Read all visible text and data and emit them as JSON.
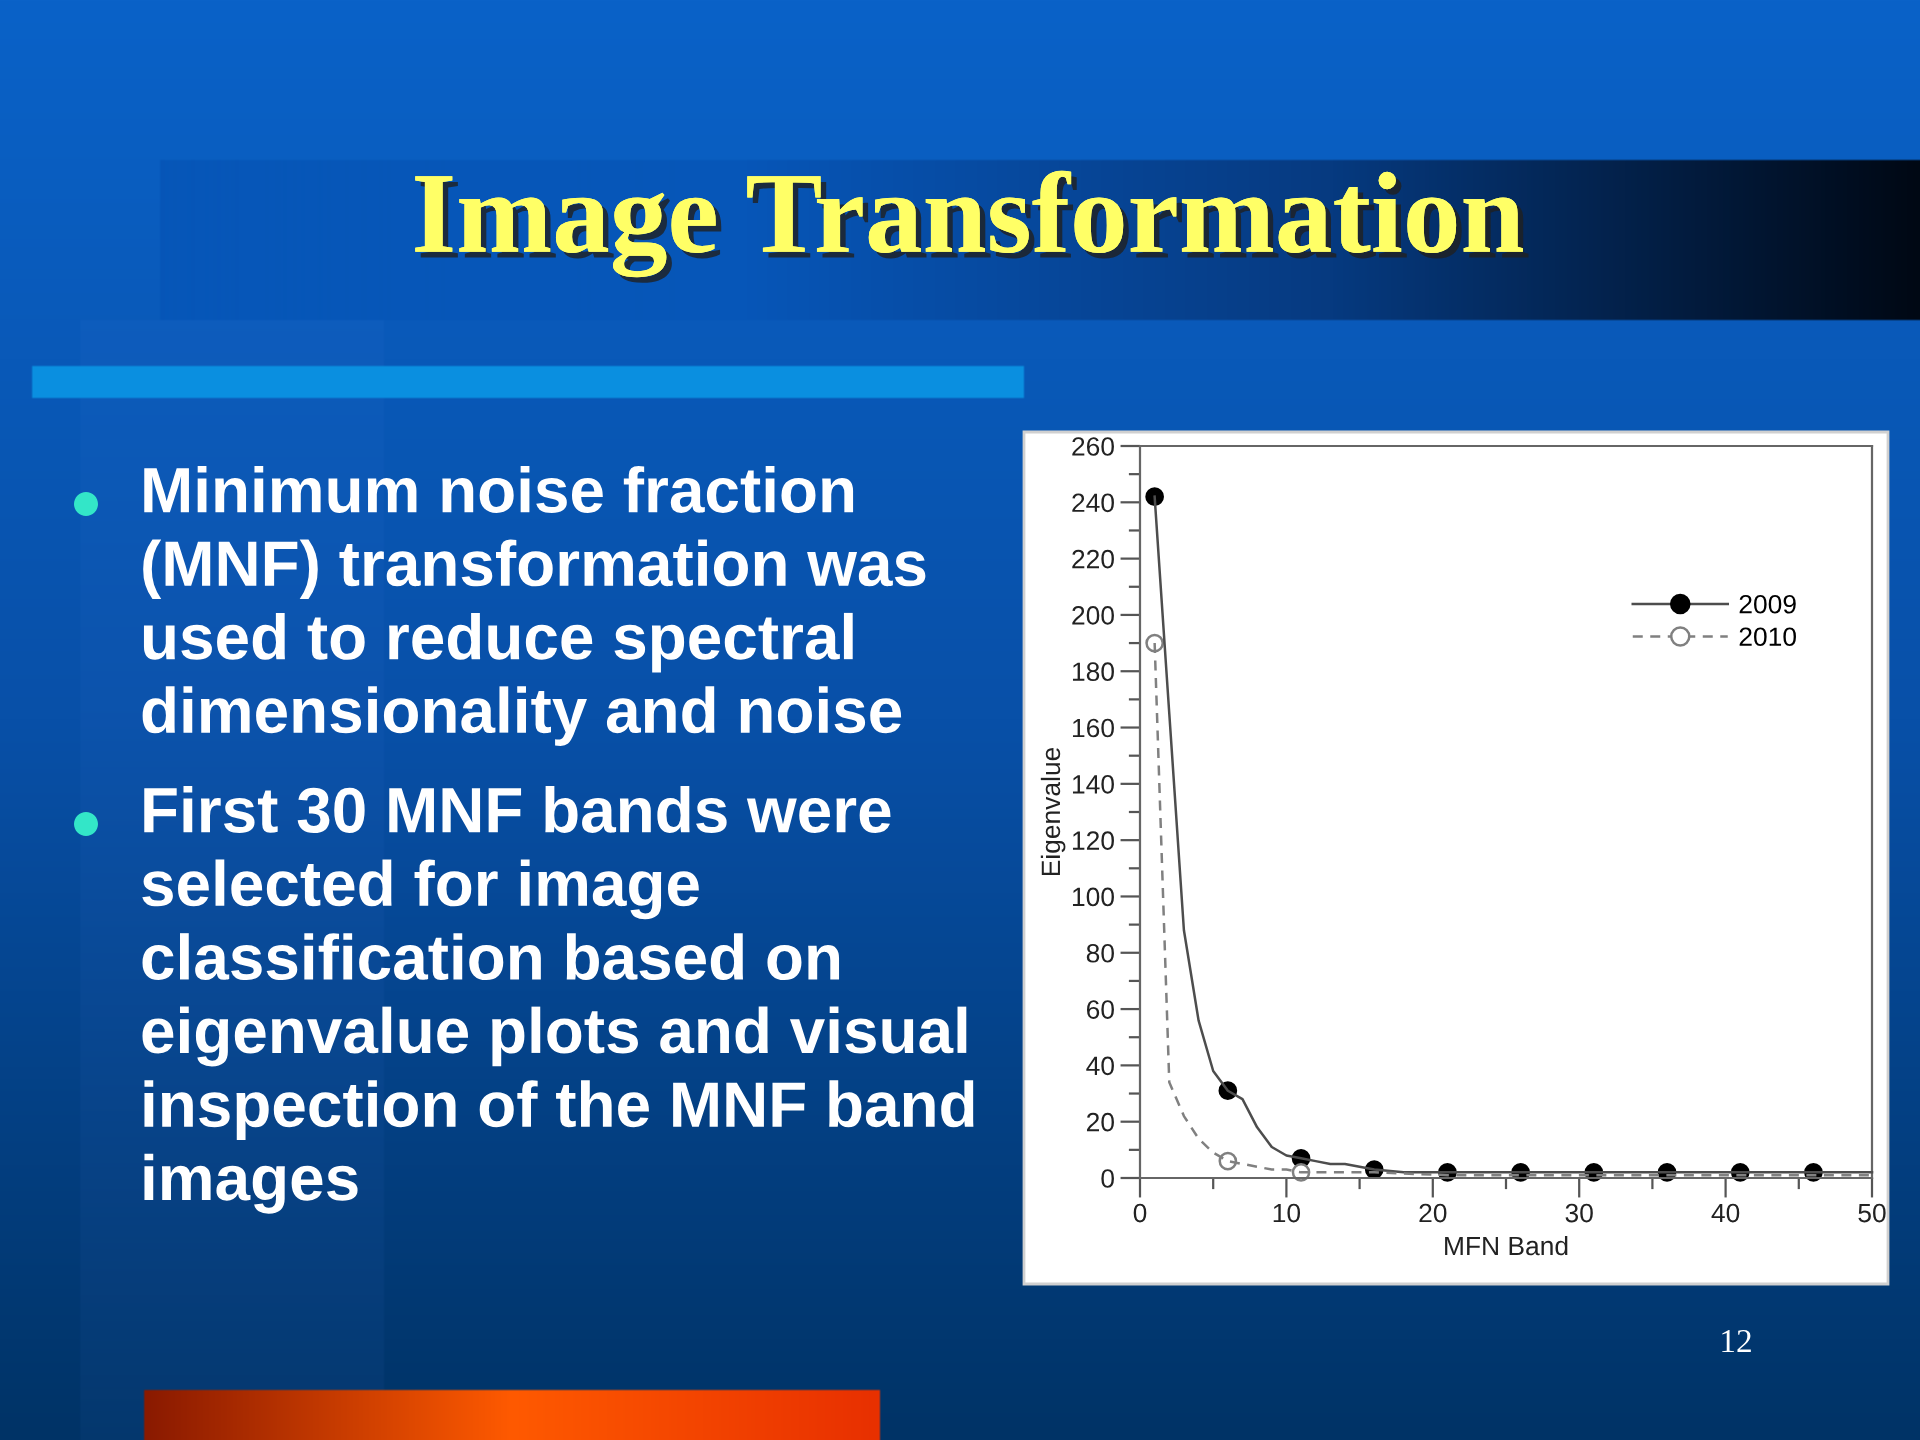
{
  "chart_data": {
    "type": "line",
    "title": "Image Transformation",
    "xlabel": "MFN Band",
    "ylabel": "Eigenvalue",
    "annotations": [
      "Minimum noise fraction\n(MNF) transformation was\nused to reduce spectral\ndimensionality and noise",
      "First 30 MNF bands were\nselected for image\nclassification based on\neigenvalue plots and visual\ninspection of the MNF band\nimages",
      "12"
    ],
    "xlim": [
      0,
      50
    ],
    "ylim": [
      0,
      260
    ],
    "xticks": [
      0,
      {
        "value": 5,
        "label": null
      },
      10,
      {
        "value": 15,
        "label": null
      },
      20,
      {
        "value": 25,
        "label": null
      },
      30,
      {
        "value": 35,
        "label": null
      },
      40,
      {
        "value": 45,
        "label": null
      },
      50
    ],
    "yticks": [
      0,
      {
        "value": 10,
        "label": null
      },
      20,
      {
        "value": 30,
        "label": null
      },
      40,
      {
        "value": 50,
        "label": null
      },
      60,
      {
        "value": 70,
        "label": null
      },
      80,
      {
        "value": 90,
        "label": null
      },
      100,
      {
        "value": 110,
        "label": null
      },
      120,
      {
        "value": 130,
        "label": null
      },
      140,
      {
        "value": 150,
        "label": null
      },
      160,
      {
        "value": 170,
        "label": null
      },
      180,
      {
        "value": 190,
        "label": null
      },
      200,
      {
        "value": 210,
        "label": null
      },
      220,
      {
        "value": 230,
        "label": null
      },
      240,
      {
        "value": 250,
        "label": null
      },
      260
    ],
    "legend": "top right",
    "series": [
      {
        "color": "#4d4d4d",
        "line_style": "solid",
        "x": [
          1,
          2,
          3,
          4,
          5,
          6,
          7,
          8,
          9,
          10,
          11,
          12,
          13,
          14,
          15,
          16,
          18,
          21,
          26,
          31,
          36,
          41,
          46,
          50
        ],
        "values": [
          242,
          165,
          88,
          56,
          38,
          31,
          28,
          18,
          11,
          8,
          7,
          6,
          5,
          5,
          4,
          3,
          2,
          2,
          2,
          2,
          2,
          2,
          2,
          2
        ]
      },
      {
        "name": "2009",
        "type": "scatter",
        "color": "#000000",
        "marker": "circle",
        "x": [
          1,
          6,
          11,
          16,
          21,
          26,
          31,
          36,
          41,
          46
        ],
        "values": [
          242,
          31,
          7,
          3,
          2,
          2,
          2,
          2,
          2,
          2
        ]
      },
      {
        "color": "#808080",
        "line_style": "dashed",
        "x": [
          1,
          2,
          3,
          4,
          5,
          6,
          7,
          8,
          9,
          10,
          11,
          13,
          16,
          21,
          26,
          31,
          36,
          41,
          46,
          50
        ],
        "values": [
          190,
          34,
          22,
          14,
          9,
          6,
          5,
          4,
          3,
          3,
          2,
          2,
          2,
          1,
          1,
          1,
          1,
          1,
          1,
          1
        ]
      },
      {
        "name": "2010",
        "type": "scatter",
        "color": "#808080",
        "colors": [
          "#ffffff",
          "#ffffff",
          "#ffffff"
        ],
        "marker": "circle",
        "x": [
          1,
          6,
          11
        ],
        "values": [
          190,
          6,
          2
        ]
      }
    ]
  }
}
